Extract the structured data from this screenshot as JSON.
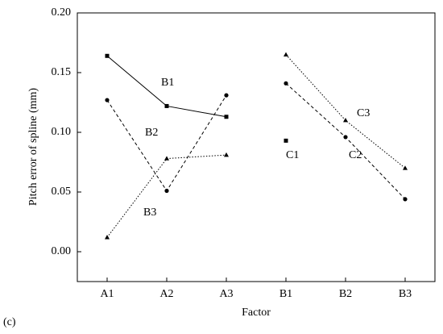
{
  "chart_data": {
    "type": "line",
    "y_label": "Pitch error of spline (mm)",
    "x_label": "Factor",
    "annotation": "(c)",
    "categories": [
      "A1",
      "A2",
      "A3",
      "B1",
      "B2",
      "B3"
    ],
    "ylim": [
      -0.025,
      0.2
    ],
    "yticks": [
      {
        "value": 0,
        "label": "0.00"
      },
      {
        "value": 0.05,
        "label": "0.05"
      },
      {
        "value": 0.1,
        "label": "0.10"
      },
      {
        "value": 0.15,
        "label": "0.15"
      },
      {
        "value": 0.2,
        "label": "0.20"
      }
    ],
    "series": [
      {
        "name": "B1",
        "color": "#000000",
        "marker": "square",
        "dash": "solid",
        "values": [
          0.164,
          0.122,
          0.113,
          null,
          null,
          null
        ]
      },
      {
        "name": "B2",
        "color": "#000000",
        "marker": "circle",
        "dash": "dashed",
        "values": [
          0.127,
          0.051,
          0.131,
          null,
          null,
          null
        ]
      },
      {
        "name": "B3",
        "color": "#000000",
        "marker": "triangle",
        "dash": "dotted",
        "values": [
          0.012,
          0.078,
          0.081,
          null,
          null,
          null
        ]
      },
      {
        "name": "C1",
        "color": "#000000",
        "marker": "square",
        "dash": "solid",
        "values": [
          null,
          null,
          null,
          0.093,
          null,
          null
        ]
      },
      {
        "name": "C2",
        "color": "#000000",
        "marker": "circle",
        "dash": "dashed",
        "values": [
          null,
          null,
          null,
          0.141,
          0.096,
          0.044
        ]
      },
      {
        "name": "C3",
        "color": "#000000",
        "marker": "triangle",
        "dash": "dotted",
        "values": [
          null,
          null,
          null,
          0.165,
          0.11,
          0.07
        ]
      }
    ]
  }
}
